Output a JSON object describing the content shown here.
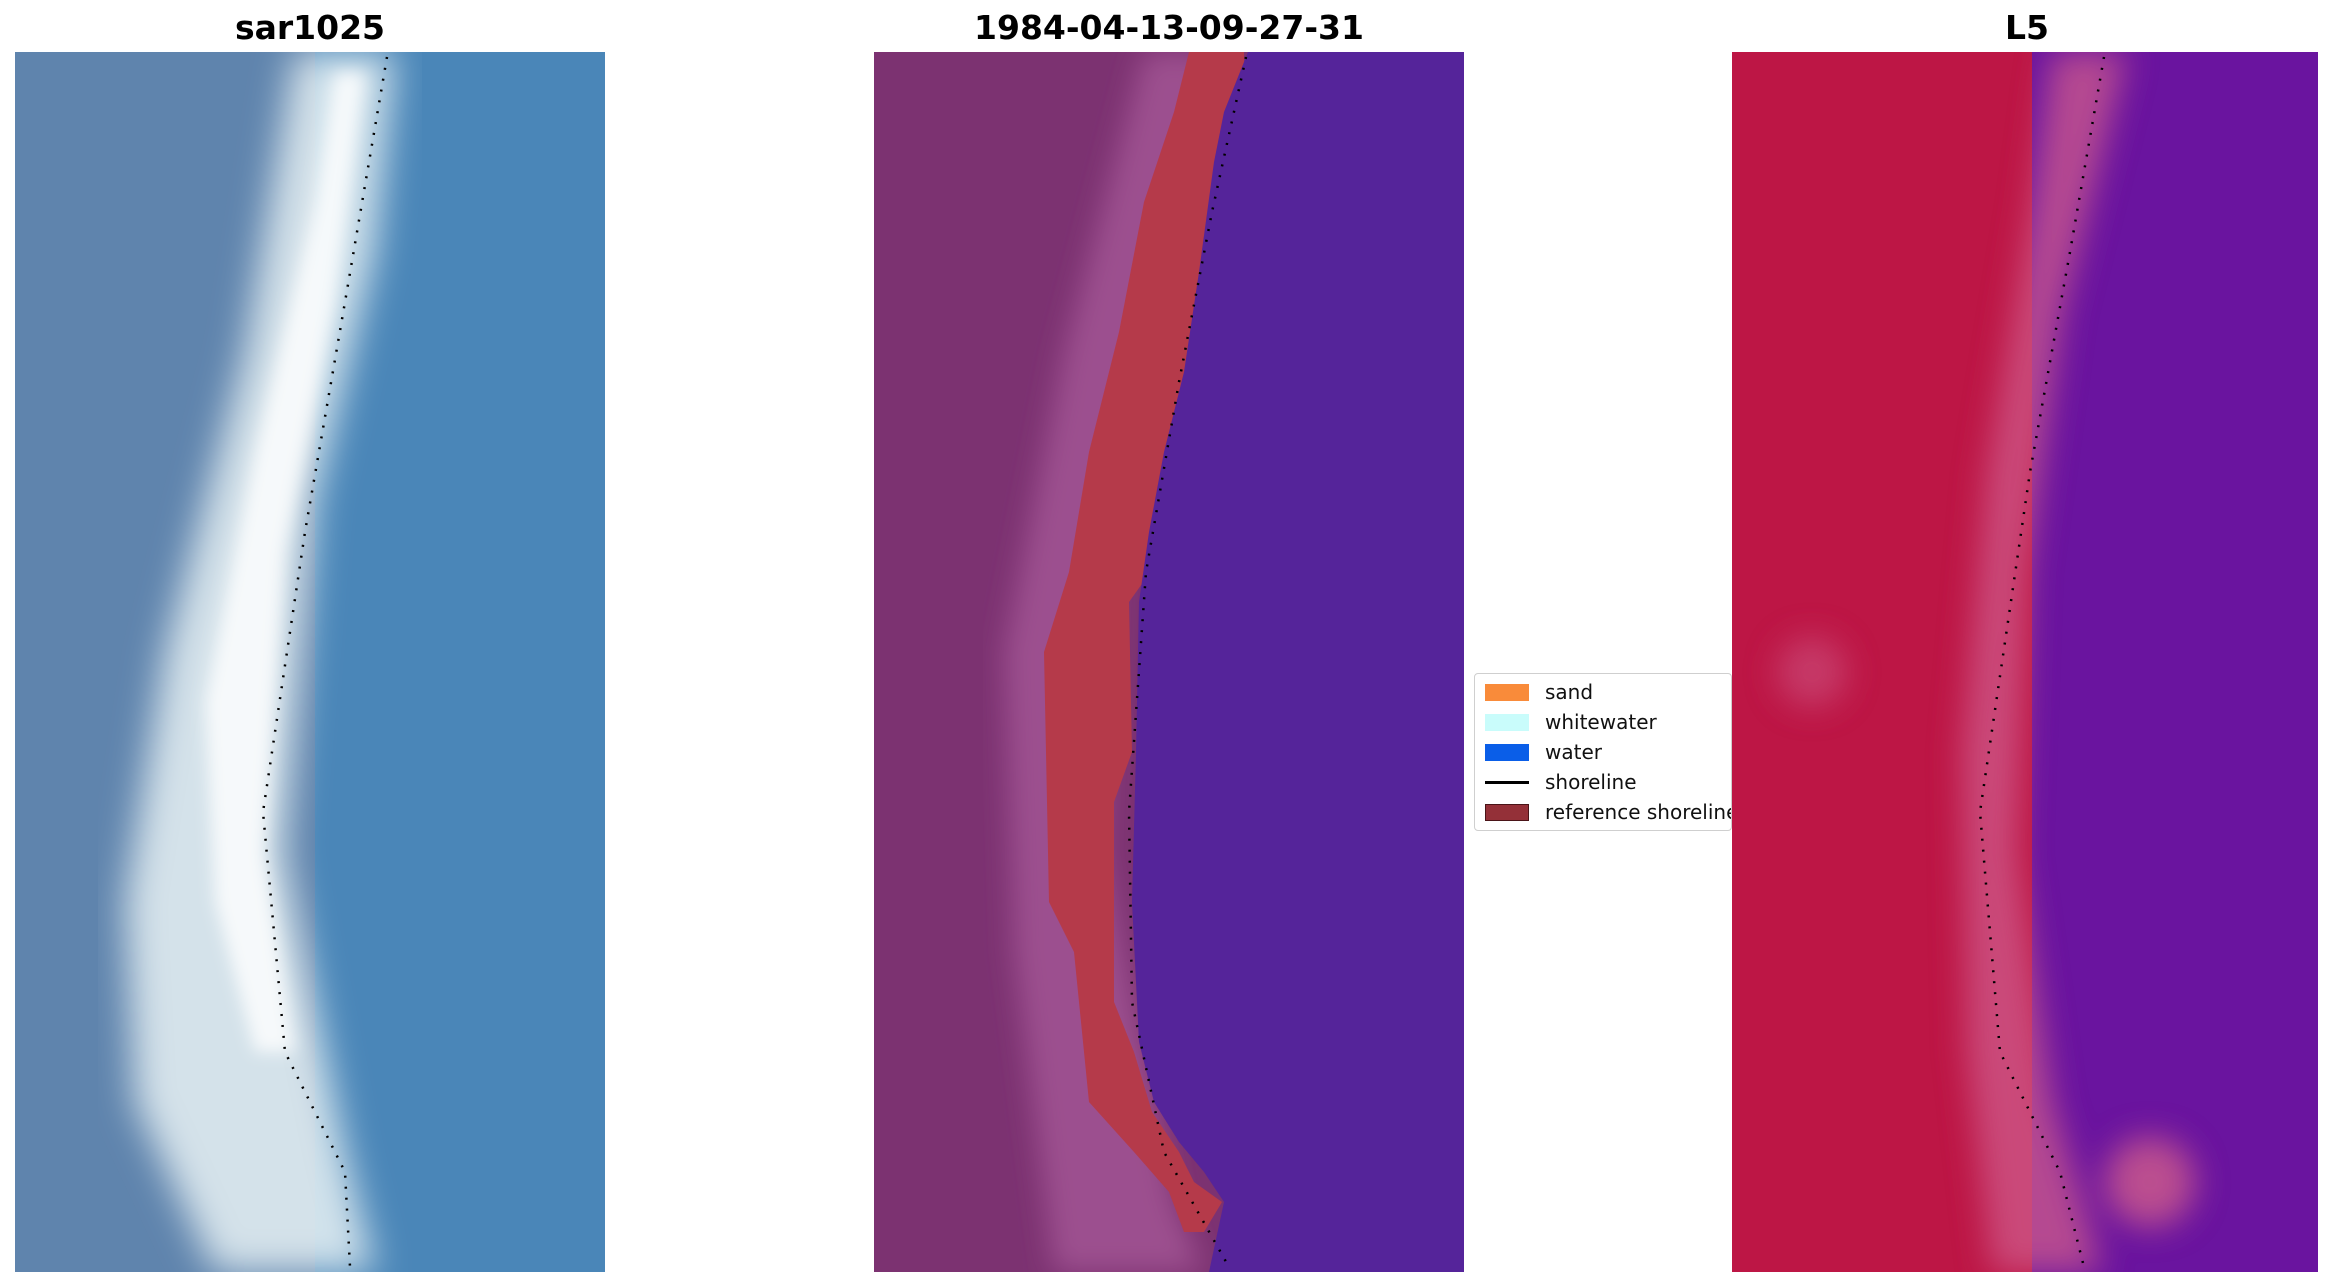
{
  "panels": [
    {
      "title": "sar1025",
      "colors": {
        "land": "#5f84ad",
        "beach": "#e9f2f4",
        "water": "#4a86b8"
      }
    },
    {
      "title": "1984-04-13-09-27-31",
      "colors": {
        "land": "#7c3271",
        "edge": "#a95b9b",
        "sand": "#b53a4a",
        "water": "#55249a"
      }
    },
    {
      "title": "L5",
      "colors": {
        "land": "#bd1645",
        "edge": "#cf5c8c",
        "water": "#6a149f"
      }
    }
  ],
  "legend": {
    "items": [
      {
        "label": "sand",
        "color": "#f98b3a",
        "kind": "patch"
      },
      {
        "label": "whitewater",
        "color": "#c9fcfb",
        "kind": "patch"
      },
      {
        "label": "water",
        "color": "#0a5ee8",
        "kind": "patch"
      },
      {
        "label": "shoreline",
        "color": "#000000",
        "kind": "line"
      },
      {
        "label": "reference shoreline",
        "color": "#943038",
        "kind": "patch"
      }
    ]
  }
}
